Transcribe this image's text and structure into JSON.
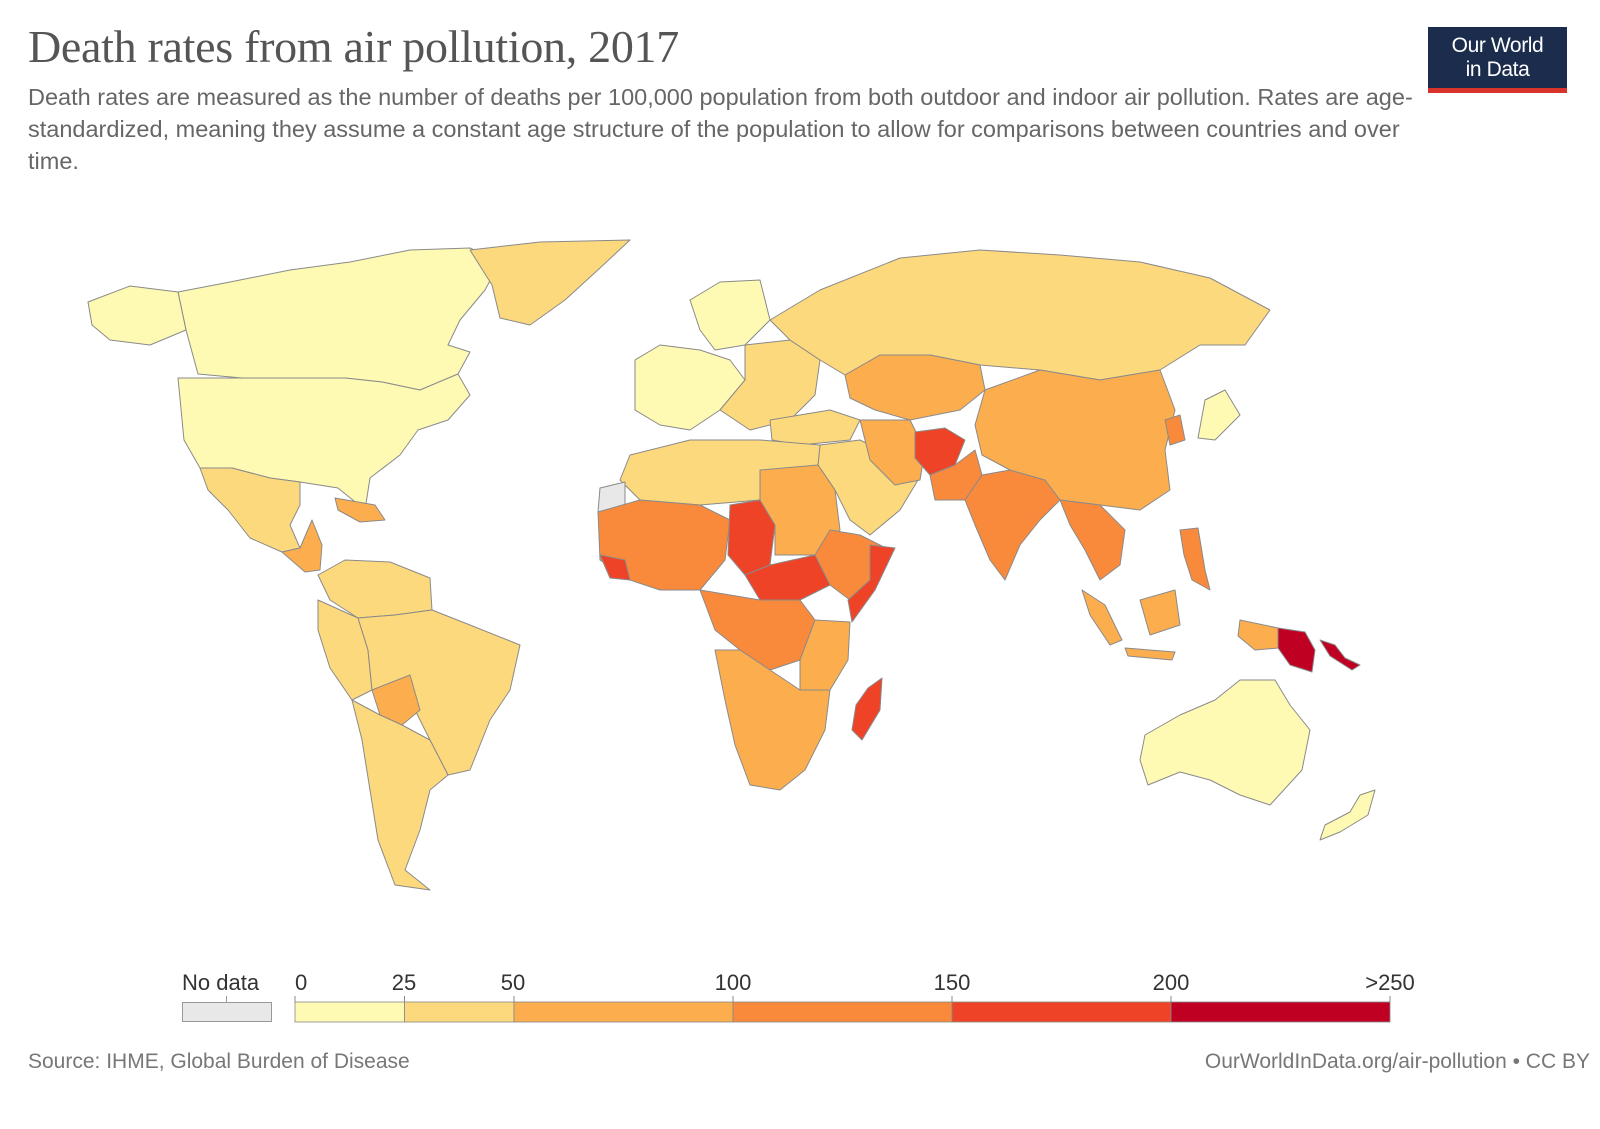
{
  "header": {
    "title": "Death rates from air pollution, 2017",
    "subtitle": "Death rates are measured as the number of deaths per 100,000 population from both outdoor and indoor air pollution. Rates are age-standardized, meaning they assume a constant age structure of the population to allow for comparisons between countries and over time."
  },
  "logo": {
    "line1": "Our World",
    "line2": "in Data",
    "background": "#1b2c4d",
    "accent": "#d7332b"
  },
  "legend": {
    "no_data_label": "No data",
    "no_data_color": "#e8e8e8",
    "ticks": [
      "0",
      "25",
      "50",
      "100",
      "150",
      "200",
      ">250"
    ],
    "bins": [
      {
        "from": 0,
        "to": 25,
        "color": "#fefab3"
      },
      {
        "from": 25,
        "to": 50,
        "color": "#fdd97e"
      },
      {
        "from": 50,
        "to": 100,
        "color": "#fcae4f"
      },
      {
        "from": 100,
        "to": 150,
        "color": "#f98a3c"
      },
      {
        "from": 150,
        "to": 200,
        "color": "#ef4327"
      },
      {
        "from": 200,
        "to": 250,
        "color": "#c00023"
      }
    ]
  },
  "footer": {
    "source": "Source: IHME, Global Burden of Disease",
    "url": "OurWorldInData.org/air-pollution • CC BY"
  },
  "map_colors": {
    "bin0": "#fefab3",
    "bin1": "#fdd97e",
    "bin2": "#fcae4f",
    "bin3": "#f98a3c",
    "bin4": "#ef4327",
    "bin5": "#c00023",
    "nodata": "#e8e8e8",
    "border": "#8a8a8a"
  }
}
